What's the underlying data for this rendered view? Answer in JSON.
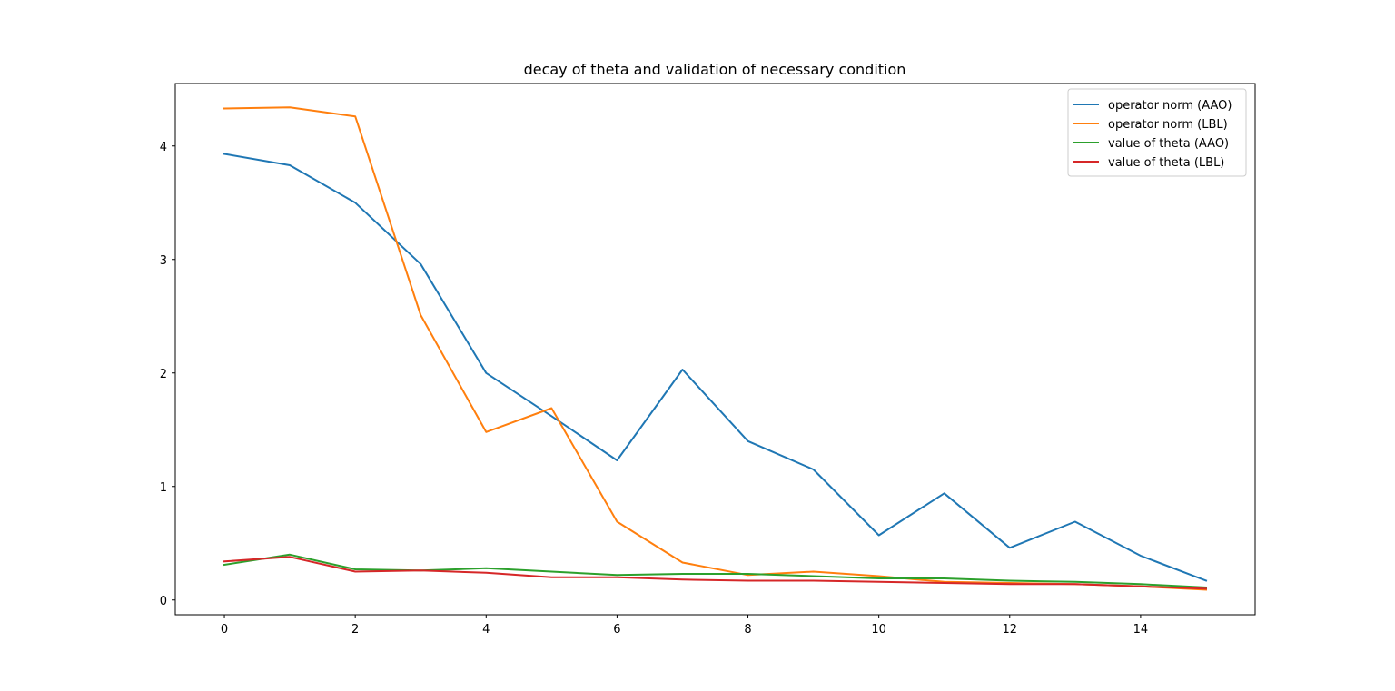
{
  "chart_data": {
    "type": "line",
    "title": "decay of theta and validation of necessary condition",
    "xlabel": "",
    "ylabel": "",
    "xlim": [
      -0.75,
      15.75
    ],
    "ylim": [
      -0.13,
      4.55
    ],
    "xticks": [
      0,
      2,
      4,
      6,
      8,
      10,
      12,
      14
    ],
    "yticks": [
      0,
      1,
      2,
      3,
      4
    ],
    "grid": false,
    "legend_position": "top-right",
    "x": [
      0,
      1,
      2,
      3,
      4,
      5,
      6,
      7,
      8,
      9,
      10,
      11,
      12,
      13,
      14,
      15
    ],
    "series": [
      {
        "name": "operator norm (AAO)",
        "color": "#1f77b4",
        "values": [
          3.93,
          3.83,
          3.5,
          2.96,
          2.0,
          1.62,
          1.23,
          2.03,
          1.4,
          1.15,
          0.57,
          0.94,
          0.46,
          0.69,
          0.39,
          0.17
        ]
      },
      {
        "name": "operator norm (LBL)",
        "color": "#ff7f0e",
        "values": [
          4.33,
          4.34,
          4.26,
          2.51,
          1.48,
          1.69,
          0.69,
          0.33,
          0.22,
          0.25,
          0.21,
          0.16,
          0.15,
          0.14,
          0.12,
          0.09
        ]
      },
      {
        "name": "value of theta (AAO)",
        "color": "#2ca02c",
        "values": [
          0.31,
          0.4,
          0.27,
          0.26,
          0.28,
          0.25,
          0.22,
          0.23,
          0.23,
          0.21,
          0.19,
          0.19,
          0.17,
          0.16,
          0.14,
          0.11
        ]
      },
      {
        "name": "value of theta (LBL)",
        "color": "#d62728",
        "values": [
          0.34,
          0.38,
          0.25,
          0.26,
          0.24,
          0.2,
          0.2,
          0.18,
          0.17,
          0.17,
          0.16,
          0.15,
          0.14,
          0.14,
          0.12,
          0.1
        ]
      }
    ]
  }
}
